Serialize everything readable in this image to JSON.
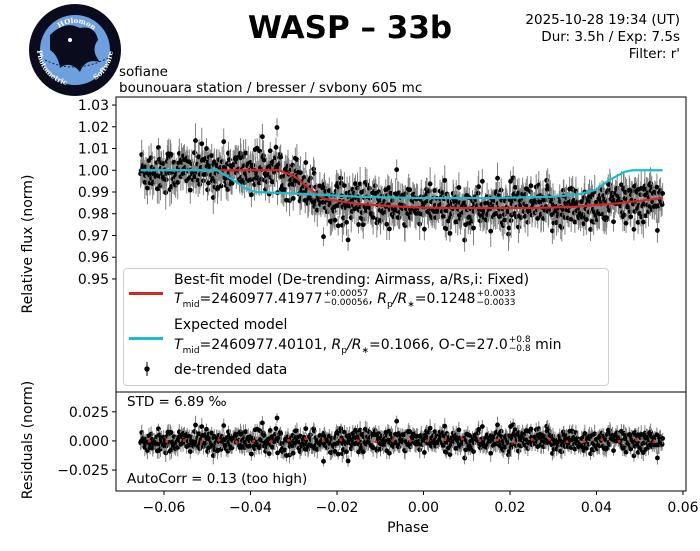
{
  "header": {
    "title": "WASP – 33b",
    "datetime": "2025-10-28 19:34 (UT)",
    "duration_exposure": "Dur: 3.5h / Exp: 7.5s",
    "filter": "Filter: r'",
    "observer": "sofiane",
    "setup": "bounouara station / bresser / svbony 605 mc"
  },
  "logo": {
    "top_text": "HOlomon",
    "left_text": "Photometric",
    "right_text": "Software"
  },
  "colors": {
    "best_fit": "#d62728",
    "expected": "#17becf",
    "data": "#000000",
    "errorbar": "#808080",
    "binned_residuals": "#d62728"
  },
  "chart_data": [
    {
      "type": "scatter",
      "panel": "light curve",
      "xlabel": "Phase",
      "ylabel": "Relative flux (norm)",
      "xlim": [
        -0.0711,
        0.0607
      ],
      "ylim": [
        0.898,
        1.0337
      ],
      "yticks": [
        "1.03",
        "1.02",
        "1.01",
        "1.00",
        "0.99",
        "0.98",
        "0.97",
        "0.96",
        "0.95"
      ],
      "xticks": [
        "−0.06",
        "−0.04",
        "−0.02",
        "0.00",
        "0.02",
        "0.04",
        "0.06"
      ],
      "data_phase_range": [
        -0.0654,
        0.0553
      ],
      "data_scatter_std_permille": 6.89,
      "series": [
        {
          "name": "Best-fit model",
          "type": "line",
          "color": "#d62728",
          "points": [
            [
              -0.0654,
              1.0
            ],
            [
              -0.0335,
              1.0
            ],
            [
              -0.03,
              0.9975
            ],
            [
              -0.026,
              0.991
            ],
            [
              -0.023,
              0.9868
            ],
            [
              -0.015,
              0.9845
            ],
            [
              -0.005,
              0.9832
            ],
            [
              0.0,
              0.9828
            ],
            [
              0.01,
              0.9826
            ],
            [
              0.025,
              0.9826
            ],
            [
              0.035,
              0.9832
            ],
            [
              0.045,
              0.9848
            ],
            [
              0.0553,
              0.9872
            ]
          ]
        },
        {
          "name": "Expected model",
          "type": "line",
          "color": "#17becf",
          "points": [
            [
              -0.0654,
              1.0
            ],
            [
              -0.0477,
              1.0
            ],
            [
              -0.044,
              0.9955
            ],
            [
              -0.041,
              0.9915
            ],
            [
              -0.0388,
              0.99
            ],
            [
              -0.03,
              0.9893
            ],
            [
              -0.015,
              0.9878
            ],
            [
              0.0,
              0.9872
            ],
            [
              0.015,
              0.9872
            ],
            [
              0.03,
              0.9878
            ],
            [
              0.036,
              0.989
            ],
            [
              0.0398,
              0.991
            ],
            [
              0.043,
              0.9955
            ],
            [
              0.0465,
              0.9993
            ],
            [
              0.0483,
              1.0
            ],
            [
              0.0553,
              1.0
            ]
          ]
        },
        {
          "name": "de-trended data",
          "type": "scatter_errorbar",
          "color": "#000000"
        }
      ],
      "legend": {
        "placement": "lower-left",
        "best_fit_label": "Best-fit model (De-trending: Airmass, a/Rs,i: Fixed)",
        "best_fit_params": {
          "tmid_value": "=2460977.41977",
          "tmid_plus": "+0.00057",
          "tmid_minus": "−0.00056",
          "rp_value": "=0.1248",
          "rp_plus": "+0.0033",
          "rp_minus": "−0.0033"
        },
        "expected_label": "Expected model",
        "expected_params": {
          "tmid_value": "=2460977.40101,",
          "rp_value": "=0.1066, O-C=27.0",
          "oc_plus": "+0.8",
          "oc_minus": "−0.8",
          "oc_unit": "min"
        },
        "T": "T",
        "mid": "mid",
        "R": "R",
        "p": "p",
        "star": "∗",
        "slash": "/",
        "data_label": "de-trended data"
      }
    },
    {
      "type": "scatter",
      "panel": "residuals",
      "xlabel": "Phase",
      "ylabel": "Residuals (norm)",
      "xlim": [
        -0.0711,
        0.0607
      ],
      "ylim": [
        -0.043,
        0.042
      ],
      "yticks": [
        "0.025",
        "0.000",
        "−0.025"
      ],
      "annotations": {
        "std": "STD = 6.89 ‰",
        "autocorr": "AutoCorr = 0.13 (too high)"
      }
    }
  ]
}
